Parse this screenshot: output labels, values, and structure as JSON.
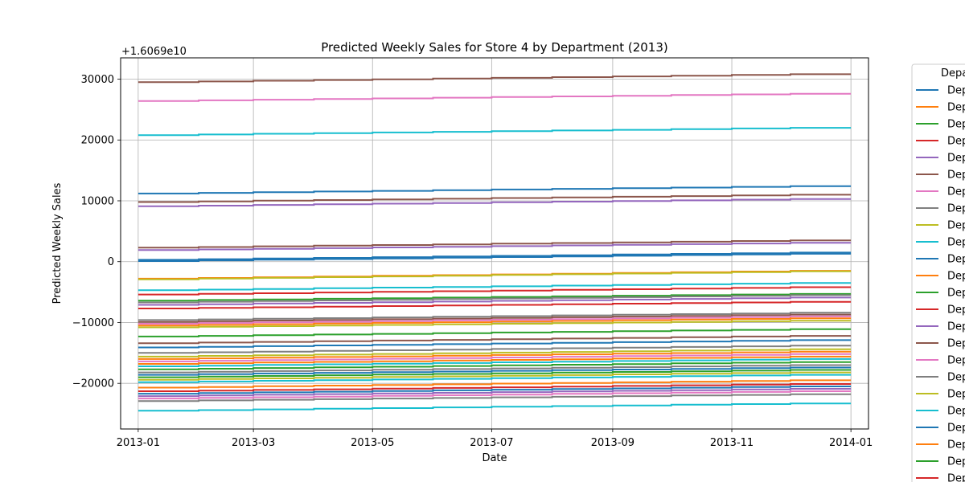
{
  "chart_data": {
    "type": "line",
    "title": "Predicted Weekly Sales for Store 4 by Department (2013)",
    "xlabel": "Date",
    "ylabel": "Predicted Weekly Sales",
    "offset_text": "+1.6069e10",
    "x_ticks": [
      "2013-01",
      "2013-03",
      "2013-05",
      "2013-07",
      "2013-09",
      "2013-11",
      "2014-01"
    ],
    "y_ticks": [
      "30000",
      "20000",
      "10000",
      "0",
      "−10000",
      "−20000"
    ],
    "x": [
      "2013-01-01",
      "2013-02-01",
      "2013-03-01",
      "2013-04-01",
      "2013-05-01",
      "2013-06-01",
      "2013-07-01",
      "2013-08-01",
      "2013-09-01",
      "2013-10-01",
      "2013-11-01",
      "2013-12-01",
      "2014-01-01"
    ],
    "ylim": [
      -27500,
      33500
    ],
    "grid": true,
    "legend_title": "Depa",
    "legend_label": "Dep",
    "series": [
      {
        "start": 29500,
        "end": 30800,
        "color": "#8c564b"
      },
      {
        "start": 26400,
        "end": 27600,
        "color": "#e377c2"
      },
      {
        "start": 20800,
        "end": 22000,
        "color": "#17becf"
      },
      {
        "start": 11200,
        "end": 12400,
        "color": "#1f77b4"
      },
      {
        "start": 9800,
        "end": 11000,
        "color": "#8c564b"
      },
      {
        "start": 9100,
        "end": 10300,
        "color": "#9467bd"
      },
      {
        "start": 2300,
        "end": 3500,
        "color": "#8c564b"
      },
      {
        "start": 1900,
        "end": 3100,
        "color": "#9467bd"
      },
      {
        "start": 300,
        "end": 1500,
        "color": "#1f77b4"
      },
      {
        "start": 100,
        "end": 1300,
        "color": "#1f77b4"
      },
      {
        "start": -2800,
        "end": -1500,
        "color": "#ff7f0e"
      },
      {
        "start": -2900,
        "end": -1600,
        "color": "#bcbd22"
      },
      {
        "start": -4700,
        "end": -3500,
        "color": "#17becf"
      },
      {
        "start": -5400,
        "end": -4200,
        "color": "#d62728"
      },
      {
        "start": -6400,
        "end": -5300,
        "color": "#2ca02c"
      },
      {
        "start": -6700,
        "end": -5500,
        "color": "#7f7f7f"
      },
      {
        "start": -7100,
        "end": -5900,
        "color": "#9467bd"
      },
      {
        "start": -7700,
        "end": -6600,
        "color": "#d62728"
      },
      {
        "start": -9600,
        "end": -8400,
        "color": "#7f7f7f"
      },
      {
        "start": -9900,
        "end": -8700,
        "color": "#8c564b"
      },
      {
        "start": -10200,
        "end": -9000,
        "color": "#e377c2"
      },
      {
        "start": -10500,
        "end": -9300,
        "color": "#ff7f0e"
      },
      {
        "start": -10800,
        "end": -9700,
        "color": "#bcbd22"
      },
      {
        "start": -12300,
        "end": -11100,
        "color": "#2ca02c"
      },
      {
        "start": -13400,
        "end": -12200,
        "color": "#8c564b"
      },
      {
        "start": -14100,
        "end": -12900,
        "color": "#1f77b4"
      },
      {
        "start": -15000,
        "end": -13800,
        "color": "#7f7f7f"
      },
      {
        "start": -15600,
        "end": -14400,
        "color": "#bcbd22"
      },
      {
        "start": -16000,
        "end": -14800,
        "color": "#ff7f0e"
      },
      {
        "start": -16400,
        "end": -15200,
        "color": "#e377c2"
      },
      {
        "start": -16800,
        "end": -15600,
        "color": "#ff7f0e"
      },
      {
        "start": -17200,
        "end": -16000,
        "color": "#17becf"
      },
      {
        "start": -17700,
        "end": -16500,
        "color": "#2ca02c"
      },
      {
        "start": -18200,
        "end": -17000,
        "color": "#7f7f7f"
      },
      {
        "start": -18600,
        "end": -17400,
        "color": "#1f77b4"
      },
      {
        "start": -19000,
        "end": -17800,
        "color": "#2ca02c"
      },
      {
        "start": -19400,
        "end": -18200,
        "color": "#bcbd22"
      },
      {
        "start": -19800,
        "end": -18600,
        "color": "#17becf"
      },
      {
        "start": -20700,
        "end": -19500,
        "color": "#ff7f0e"
      },
      {
        "start": -21300,
        "end": -20100,
        "color": "#d62728"
      },
      {
        "start": -21700,
        "end": -20500,
        "color": "#1f77b4"
      },
      {
        "start": -22100,
        "end": -20900,
        "color": "#9467bd"
      },
      {
        "start": -22500,
        "end": -21300,
        "color": "#e377c2"
      },
      {
        "start": -22900,
        "end": -21800,
        "color": "#7f7f7f"
      },
      {
        "start": -24500,
        "end": -23300,
        "color": "#17becf"
      }
    ],
    "legend_entries": [
      "#1f77b4",
      "#ff7f0e",
      "#2ca02c",
      "#d62728",
      "#9467bd",
      "#8c564b",
      "#e377c2",
      "#7f7f7f",
      "#bcbd22",
      "#17becf",
      "#1f77b4",
      "#ff7f0e",
      "#2ca02c",
      "#d62728",
      "#9467bd",
      "#8c564b",
      "#e377c2",
      "#7f7f7f",
      "#bcbd22",
      "#17becf",
      "#1f77b4",
      "#ff7f0e",
      "#2ca02c",
      "#d62728"
    ]
  }
}
